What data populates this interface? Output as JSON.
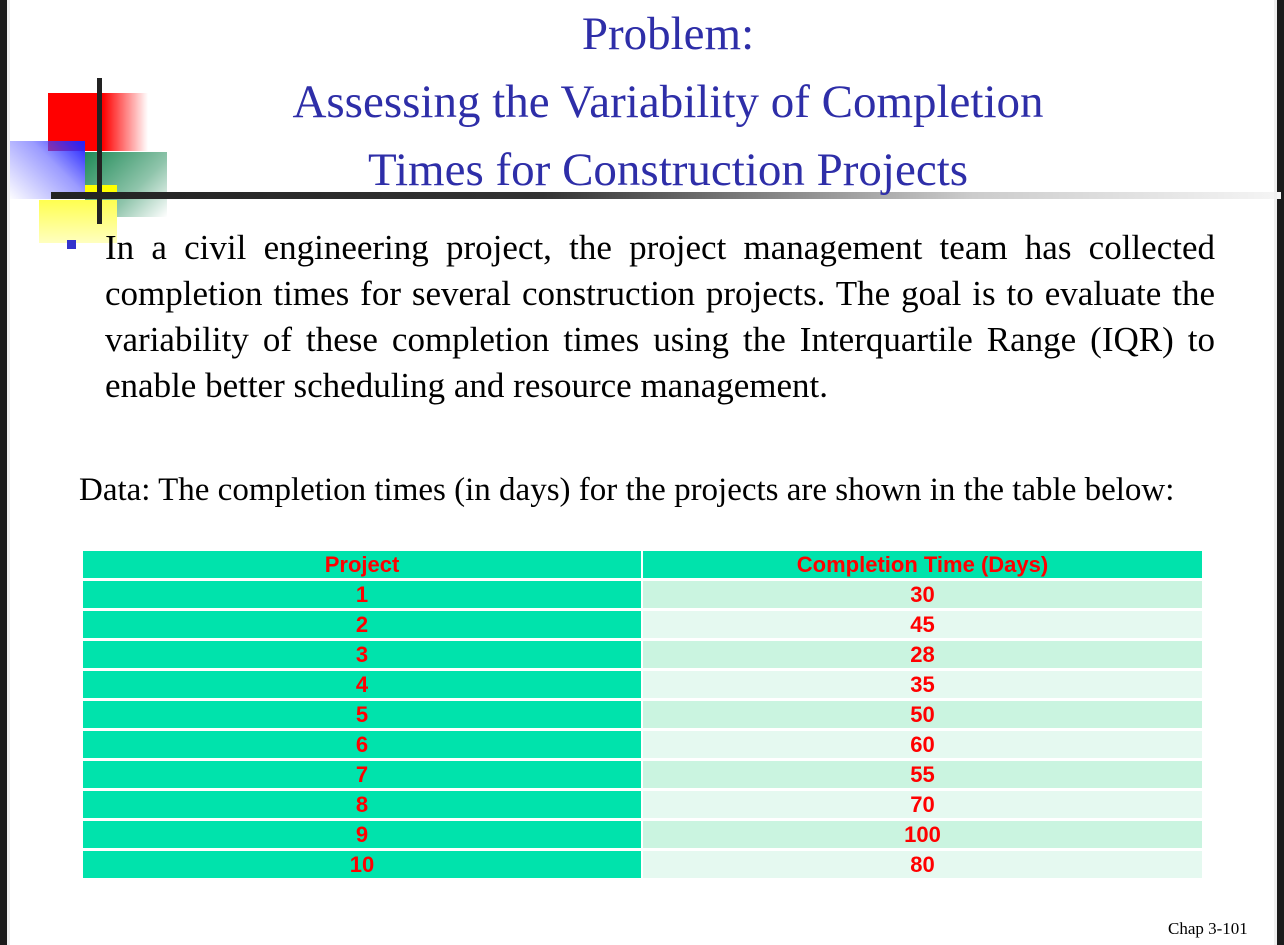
{
  "slide": {
    "title_lines": [
      "Problem:",
      "Assessing the Variability of Completion",
      "Times for Construction Projects"
    ],
    "bullet_text": "In a civil engineering project, the project management team has collected completion times for several construction projects. The goal is to evaluate the variability of these completion times using the Interquartile Range (IQR) to enable better scheduling and resource management.",
    "data_intro": "Data: The completion times (in days) for the projects are shown in the table below:",
    "table": {
      "headers": [
        "Project",
        "Completion Time (Days)"
      ],
      "rows": [
        [
          "1",
          "30"
        ],
        [
          "2",
          "45"
        ],
        [
          "3",
          "28"
        ],
        [
          "4",
          "35"
        ],
        [
          "5",
          "50"
        ],
        [
          "6",
          "60"
        ],
        [
          "7",
          "55"
        ],
        [
          "8",
          "70"
        ],
        [
          "9",
          "100"
        ],
        [
          "10",
          "80"
        ]
      ]
    },
    "footer": "Chap 3-101",
    "colors": {
      "title": "#2e2ea8",
      "table_header_bg": "#00e3ac",
      "table_text": "#ff0000",
      "row_odd_bg": "#caf4e0",
      "row_even_bg": "#e5f9f0"
    }
  }
}
